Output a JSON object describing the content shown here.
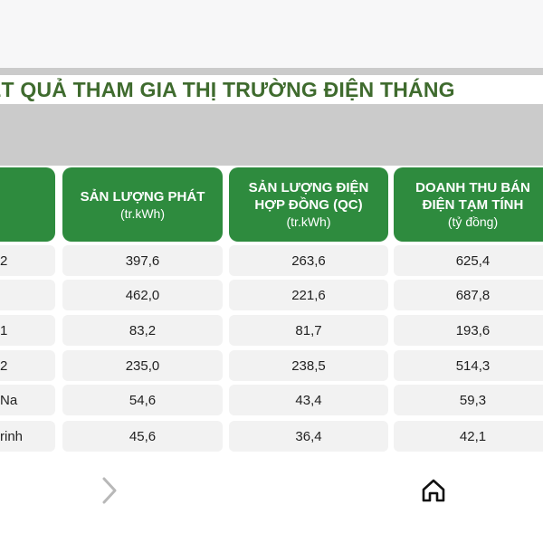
{
  "banner": {
    "title": "ẾT QUẢ THAM GIA THỊ TRƯỜNG ĐIỆN THÁNG"
  },
  "table": {
    "headers": [
      {
        "title": "",
        "unit": ""
      },
      {
        "title": "SẢN LƯỢNG PHÁT",
        "unit": "(tr.kWh)"
      },
      {
        "title": "SẢN LƯỢNG ĐIỆN\nHỢP ĐỒNG (QC)",
        "unit": "(tr.kWh)"
      },
      {
        "title": "DOANH THU BÁN\nĐIỆN TẠM TÍNH",
        "unit": "(tỷ đồng)"
      }
    ],
    "rows": [
      {
        "name": "2",
        "output": "397,6",
        "contract": "263,6",
        "revenue": "625,4"
      },
      {
        "name": "",
        "output": "462,0",
        "contract": "221,6",
        "revenue": "687,8"
      },
      {
        "name": "1",
        "output": "83,2",
        "contract": "81,7",
        "revenue": "193,6"
      },
      {
        "name": "2",
        "output": "235,0",
        "contract": "238,5",
        "revenue": "514,3"
      },
      {
        "name": "Na",
        "output": "54,6",
        "contract": "43,4",
        "revenue": "59,3"
      },
      {
        "name": "rinh",
        "output": "45,6",
        "contract": "36,4",
        "revenue": "42,1"
      }
    ]
  },
  "nav": {
    "forward_icon": "chevron-right-icon",
    "home_icon": "home-icon"
  }
}
